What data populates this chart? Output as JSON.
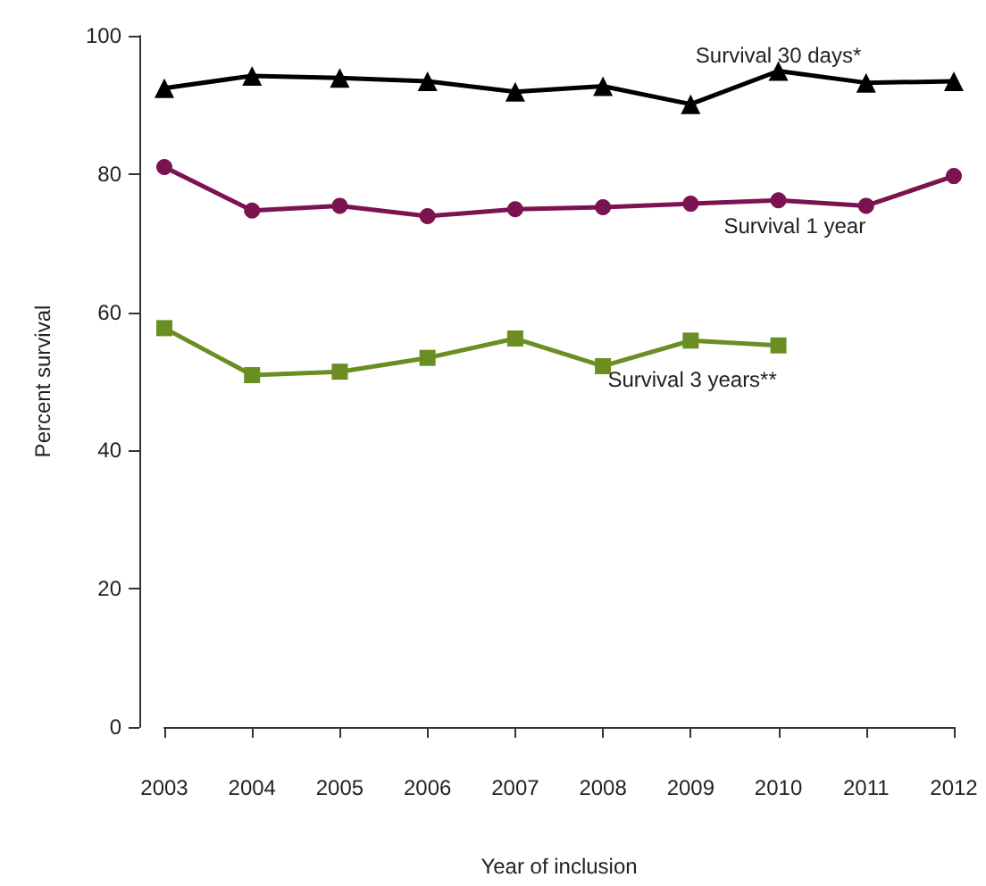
{
  "chart_data": {
    "type": "line",
    "xlabel": "Year of inclusion",
    "ylabel": "Percent survival",
    "x": [
      2003,
      2004,
      2005,
      2006,
      2007,
      2008,
      2009,
      2010,
      2011,
      2012
    ],
    "xlim": [
      2003,
      2012
    ],
    "xticks": [
      2003,
      2004,
      2005,
      2006,
      2007,
      2008,
      2009,
      2010,
      2011,
      2012
    ],
    "ylim": [
      0,
      100
    ],
    "yticks": [
      0,
      20,
      40,
      60,
      80,
      100
    ],
    "grid": false,
    "legend": false,
    "series": [
      {
        "name": "Survival 30 days*",
        "color": "#000000",
        "marker": "triangle",
        "values": [
          92.4,
          94.2,
          93.9,
          93.4,
          91.9,
          92.7,
          90.1,
          94.9,
          93.2,
          93.4
        ]
      },
      {
        "name": "Survival 1 year",
        "color": "#7b1350",
        "marker": "circle",
        "values": [
          81,
          74.7,
          75.4,
          73.9,
          74.9,
          75.2,
          75.7,
          76.2,
          75.4,
          79.7
        ]
      },
      {
        "name": "Survival 3 years**",
        "color": "#6b8e23",
        "marker": "square",
        "values": [
          57.7,
          50.9,
          51.4,
          53.4,
          56.2,
          52.2,
          55.9,
          55.2,
          null,
          null
        ]
      }
    ]
  }
}
